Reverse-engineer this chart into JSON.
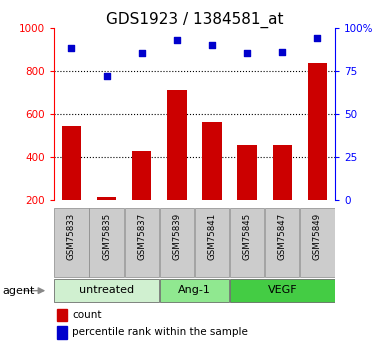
{
  "title": "GDS1923 / 1384581_at",
  "samples": [
    "GSM75833",
    "GSM75835",
    "GSM75837",
    "GSM75839",
    "GSM75841",
    "GSM75845",
    "GSM75847",
    "GSM75849"
  ],
  "counts": [
    545,
    215,
    430,
    710,
    560,
    455,
    455,
    835
  ],
  "percentiles": [
    88,
    72,
    85,
    93,
    90,
    85,
    86,
    94
  ],
  "groups": [
    {
      "label": "untreated",
      "samples": [
        "GSM75833",
        "GSM75835",
        "GSM75837"
      ],
      "color": "#d0f0d0"
    },
    {
      "label": "Ang-1",
      "samples": [
        "GSM75839",
        "GSM75841"
      ],
      "color": "#90e890"
    },
    {
      "label": "VEGF",
      "samples": [
        "GSM75845",
        "GSM75847",
        "GSM75849"
      ],
      "color": "#44cc44"
    }
  ],
  "ylim_left": [
    200,
    1000
  ],
  "ylim_right": [
    0,
    100
  ],
  "yticks_left": [
    200,
    400,
    600,
    800,
    1000
  ],
  "yticks_right": [
    0,
    25,
    50,
    75,
    100
  ],
  "bar_color": "#cc0000",
  "dot_color": "#0000cc",
  "bar_width": 0.55,
  "agent_label": "agent",
  "legend_count": "count",
  "legend_percentile": "percentile rank within the sample",
  "sample_box_color": "#cccccc",
  "title_fontsize": 11,
  "tick_fontsize": 7.5,
  "sample_fontsize": 6.2,
  "group_fontsize": 8,
  "legend_fontsize": 7.5
}
